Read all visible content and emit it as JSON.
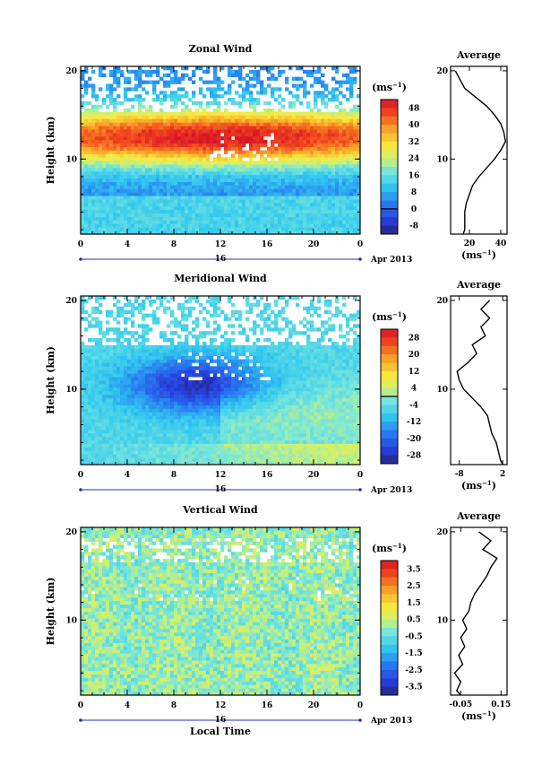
{
  "chart_data": [
    {
      "type": "heatmap",
      "title": "Zonal Wind",
      "ylabel": "Height (km)",
      "xlabel": "",
      "x_ticks": [
        "0",
        "4",
        "8",
        "12",
        "16",
        "20",
        "0"
      ],
      "y_ticks": [
        "10",
        "20"
      ],
      "xlim": [
        0,
        24
      ],
      "ylim": [
        1.5,
        20.5
      ],
      "date_label": "16",
      "date_suffix": "Apr 2013",
      "colorbar": {
        "unit": "(ms",
        "unit_exp": "−1",
        "unit_close": ")",
        "labels": [
          "48",
          "40",
          "32",
          "24",
          "16",
          "8",
          "0",
          "-8"
        ],
        "vmin": -12,
        "vmax": 52,
        "zero_line": 0
      },
      "profile": {
        "title": "Average",
        "xlabel": "(ms",
        "xlabel_exp": "−1",
        "xlabel_close": ")",
        "x_ticks": [
          "20",
          "40"
        ],
        "x_tick_values": [
          20,
          40
        ],
        "xlim": [
          8,
          44
        ],
        "y_ticks": [
          "10",
          "20"
        ],
        "height": [
          1.5,
          2,
          3,
          4,
          5,
          6,
          7,
          8,
          9,
          10,
          11,
          12,
          13,
          14,
          15,
          16,
          17,
          18,
          19,
          20
        ],
        "values": [
          16,
          17,
          17,
          17,
          18,
          20,
          22,
          26,
          31,
          36,
          40,
          43,
          42,
          40,
          36,
          31,
          24,
          17,
          14,
          11
        ]
      }
    },
    {
      "type": "heatmap",
      "title": "Meridional Wind",
      "ylabel": "Height (km)",
      "xlabel": "",
      "x_ticks": [
        "0",
        "4",
        "8",
        "12",
        "16",
        "20",
        "0"
      ],
      "y_ticks": [
        "10",
        "20"
      ],
      "xlim": [
        0,
        24
      ],
      "ylim": [
        1.5,
        20.5
      ],
      "date_label": "16",
      "date_suffix": "Apr 2013",
      "colorbar": {
        "unit": "(ms",
        "unit_exp": "−1",
        "unit_close": ")",
        "labels": [
          "28",
          "20",
          "12",
          "4",
          "-4",
          "-12",
          "-20",
          "-28"
        ],
        "vmin": -32,
        "vmax": 32,
        "zero_line": 0
      },
      "profile": {
        "title": "Average",
        "xlabel": "(ms",
        "xlabel_exp": "−1",
        "xlabel_close": ")",
        "x_ticks": [
          "-8",
          "2"
        ],
        "x_tick_values": [
          -8,
          2
        ],
        "xlim": [
          -10,
          3
        ],
        "y_ticks": [
          "10",
          "20"
        ],
        "height": [
          1.5,
          2,
          3,
          4,
          5,
          6,
          7,
          8,
          9,
          10,
          11,
          12,
          13,
          14,
          15,
          16,
          17,
          18,
          19,
          20
        ],
        "values": [
          2,
          1.5,
          1,
          0.5,
          -0.5,
          -1,
          -1.5,
          -3,
          -5,
          -7,
          -8,
          -8.5,
          -6,
          -4,
          -5,
          -2,
          -3,
          -1,
          -3,
          -1
        ]
      }
    },
    {
      "type": "heatmap",
      "title": "Vertical Wind",
      "ylabel": "Height (km)",
      "xlabel": "Local Time",
      "x_ticks": [
        "0",
        "4",
        "8",
        "12",
        "16",
        "20",
        "0"
      ],
      "y_ticks": [
        "10",
        "20"
      ],
      "xlim": [
        0,
        24
      ],
      "ylim": [
        1.5,
        20.5
      ],
      "date_label": "16",
      "date_suffix": "Apr 2013",
      "colorbar": {
        "unit": "(ms",
        "unit_exp": "−1",
        "unit_close": ")",
        "labels": [
          "3.5",
          "2.5",
          "1.5",
          "0.5",
          "-0.5",
          "-1.5",
          "-2.5",
          "-3.5"
        ],
        "vmin": -4,
        "vmax": 4,
        "zero_line": null
      },
      "profile": {
        "title": "Average",
        "xlabel": "(ms",
        "xlabel_exp": "−1",
        "xlabel_close": ")",
        "x_ticks": [
          "-0.05",
          "0.15"
        ],
        "x_tick_values": [
          -0.05,
          0.15
        ],
        "xlim": [
          -0.1,
          0.18
        ],
        "y_ticks": [
          "10",
          "20"
        ],
        "height": [
          1.5,
          2,
          3,
          4,
          5,
          6,
          7,
          8,
          9,
          10,
          11,
          12,
          13,
          14,
          15,
          16,
          17,
          18,
          19,
          20
        ],
        "values": [
          -0.05,
          -0.07,
          -0.05,
          -0.08,
          -0.04,
          -0.06,
          -0.03,
          -0.05,
          -0.02,
          -0.04,
          -0.01,
          0.0,
          0.02,
          0.05,
          0.08,
          0.1,
          0.13,
          0.06,
          0.1,
          0.04
        ]
      }
    }
  ]
}
